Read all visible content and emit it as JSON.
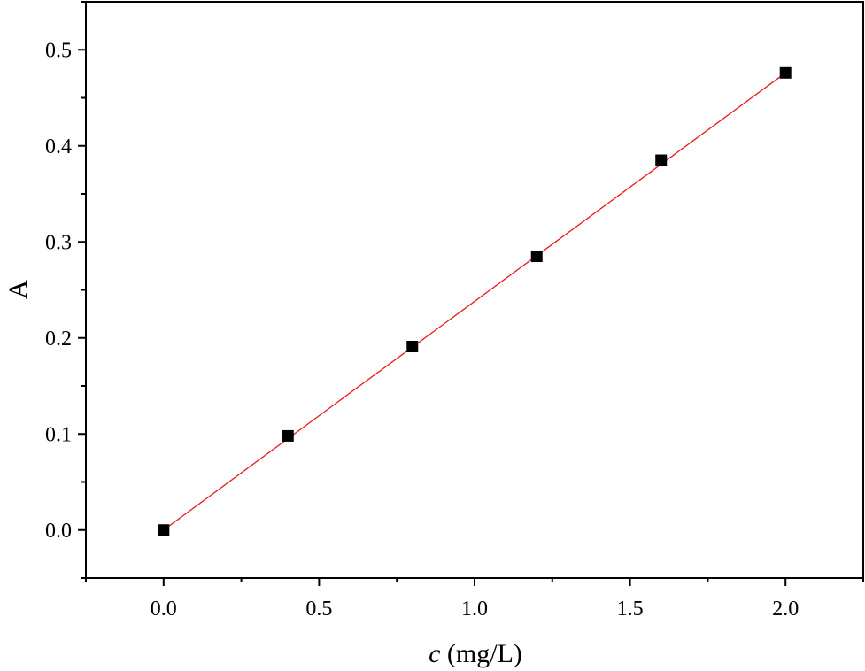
{
  "chart_data": {
    "type": "scatter",
    "title": "",
    "xlabel_var": "c",
    "xlabel_unit": " (mg/L)",
    "ylabel": "A",
    "xlim": [
      -0.25,
      2.25
    ],
    "ylim": [
      -0.05,
      0.55
    ],
    "x_ticks": [
      0.0,
      0.5,
      1.0,
      1.5,
      2.0
    ],
    "x_tick_labels": [
      "0.0",
      "0.5",
      "1.0",
      "1.5",
      "2.0"
    ],
    "y_ticks": [
      0.0,
      0.1,
      0.2,
      0.3,
      0.4,
      0.5
    ],
    "y_tick_labels": [
      "0.0",
      "0.1",
      "0.2",
      "0.3",
      "0.4",
      "0.5"
    ],
    "grid": false,
    "legend": "none",
    "series": [
      {
        "kind": "scatter",
        "marker": "square",
        "color": "#000000",
        "x": [
          0.0,
          0.4,
          0.8,
          1.2,
          1.6,
          2.0
        ],
        "y": [
          0.0,
          0.098,
          0.191,
          0.285,
          0.385,
          0.476
        ]
      },
      {
        "kind": "line",
        "color": "#e8171e",
        "x": [
          0.0,
          2.0
        ],
        "y": [
          0.0,
          0.476
        ]
      }
    ]
  }
}
